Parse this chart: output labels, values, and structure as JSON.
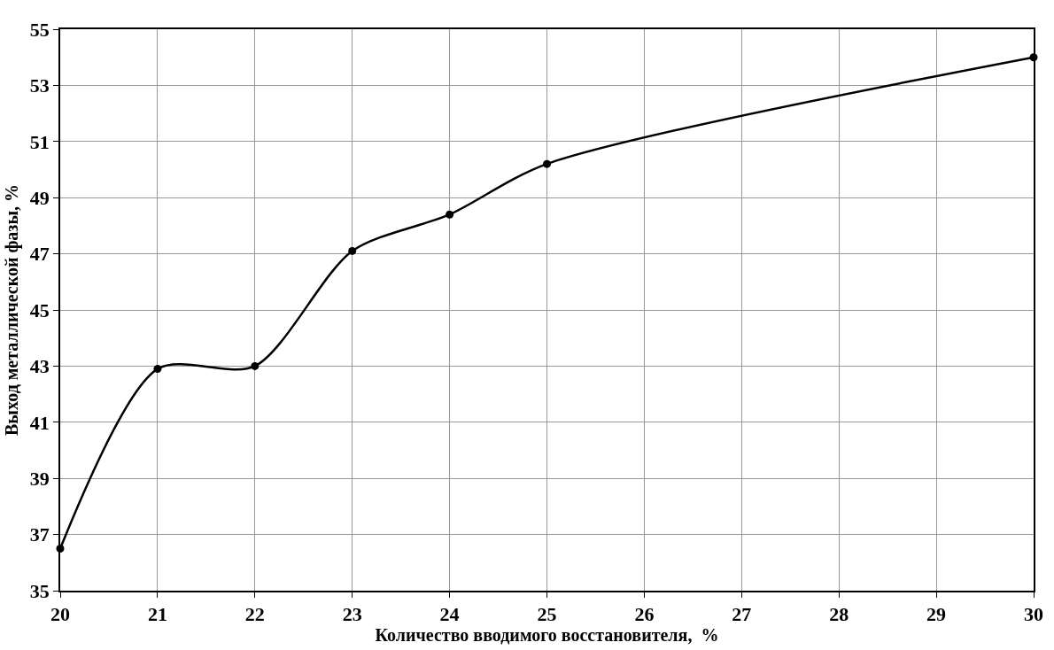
{
  "chart_data": {
    "type": "line",
    "xlabel": "Количество вводимого восстановителя,  %",
    "ylabel": "Выход металлической фазы, %",
    "x": [
      20,
      21,
      22,
      23,
      24,
      25,
      30
    ],
    "series": [
      {
        "color": "#000000",
        "values": [
          36.5,
          42.9,
          43.0,
          47.1,
          48.4,
          50.2,
          54.0
        ]
      }
    ],
    "xlim": [
      20,
      30
    ],
    "xticks": [
      20,
      21,
      22,
      23,
      24,
      25,
      26,
      27,
      28,
      29,
      30
    ],
    "ylim": [
      35,
      55
    ],
    "yticks": [
      35,
      37,
      39,
      41,
      43,
      45,
      47,
      49,
      51,
      53,
      55
    ],
    "grid": true,
    "marker": "circle",
    "line_style": "solid"
  }
}
